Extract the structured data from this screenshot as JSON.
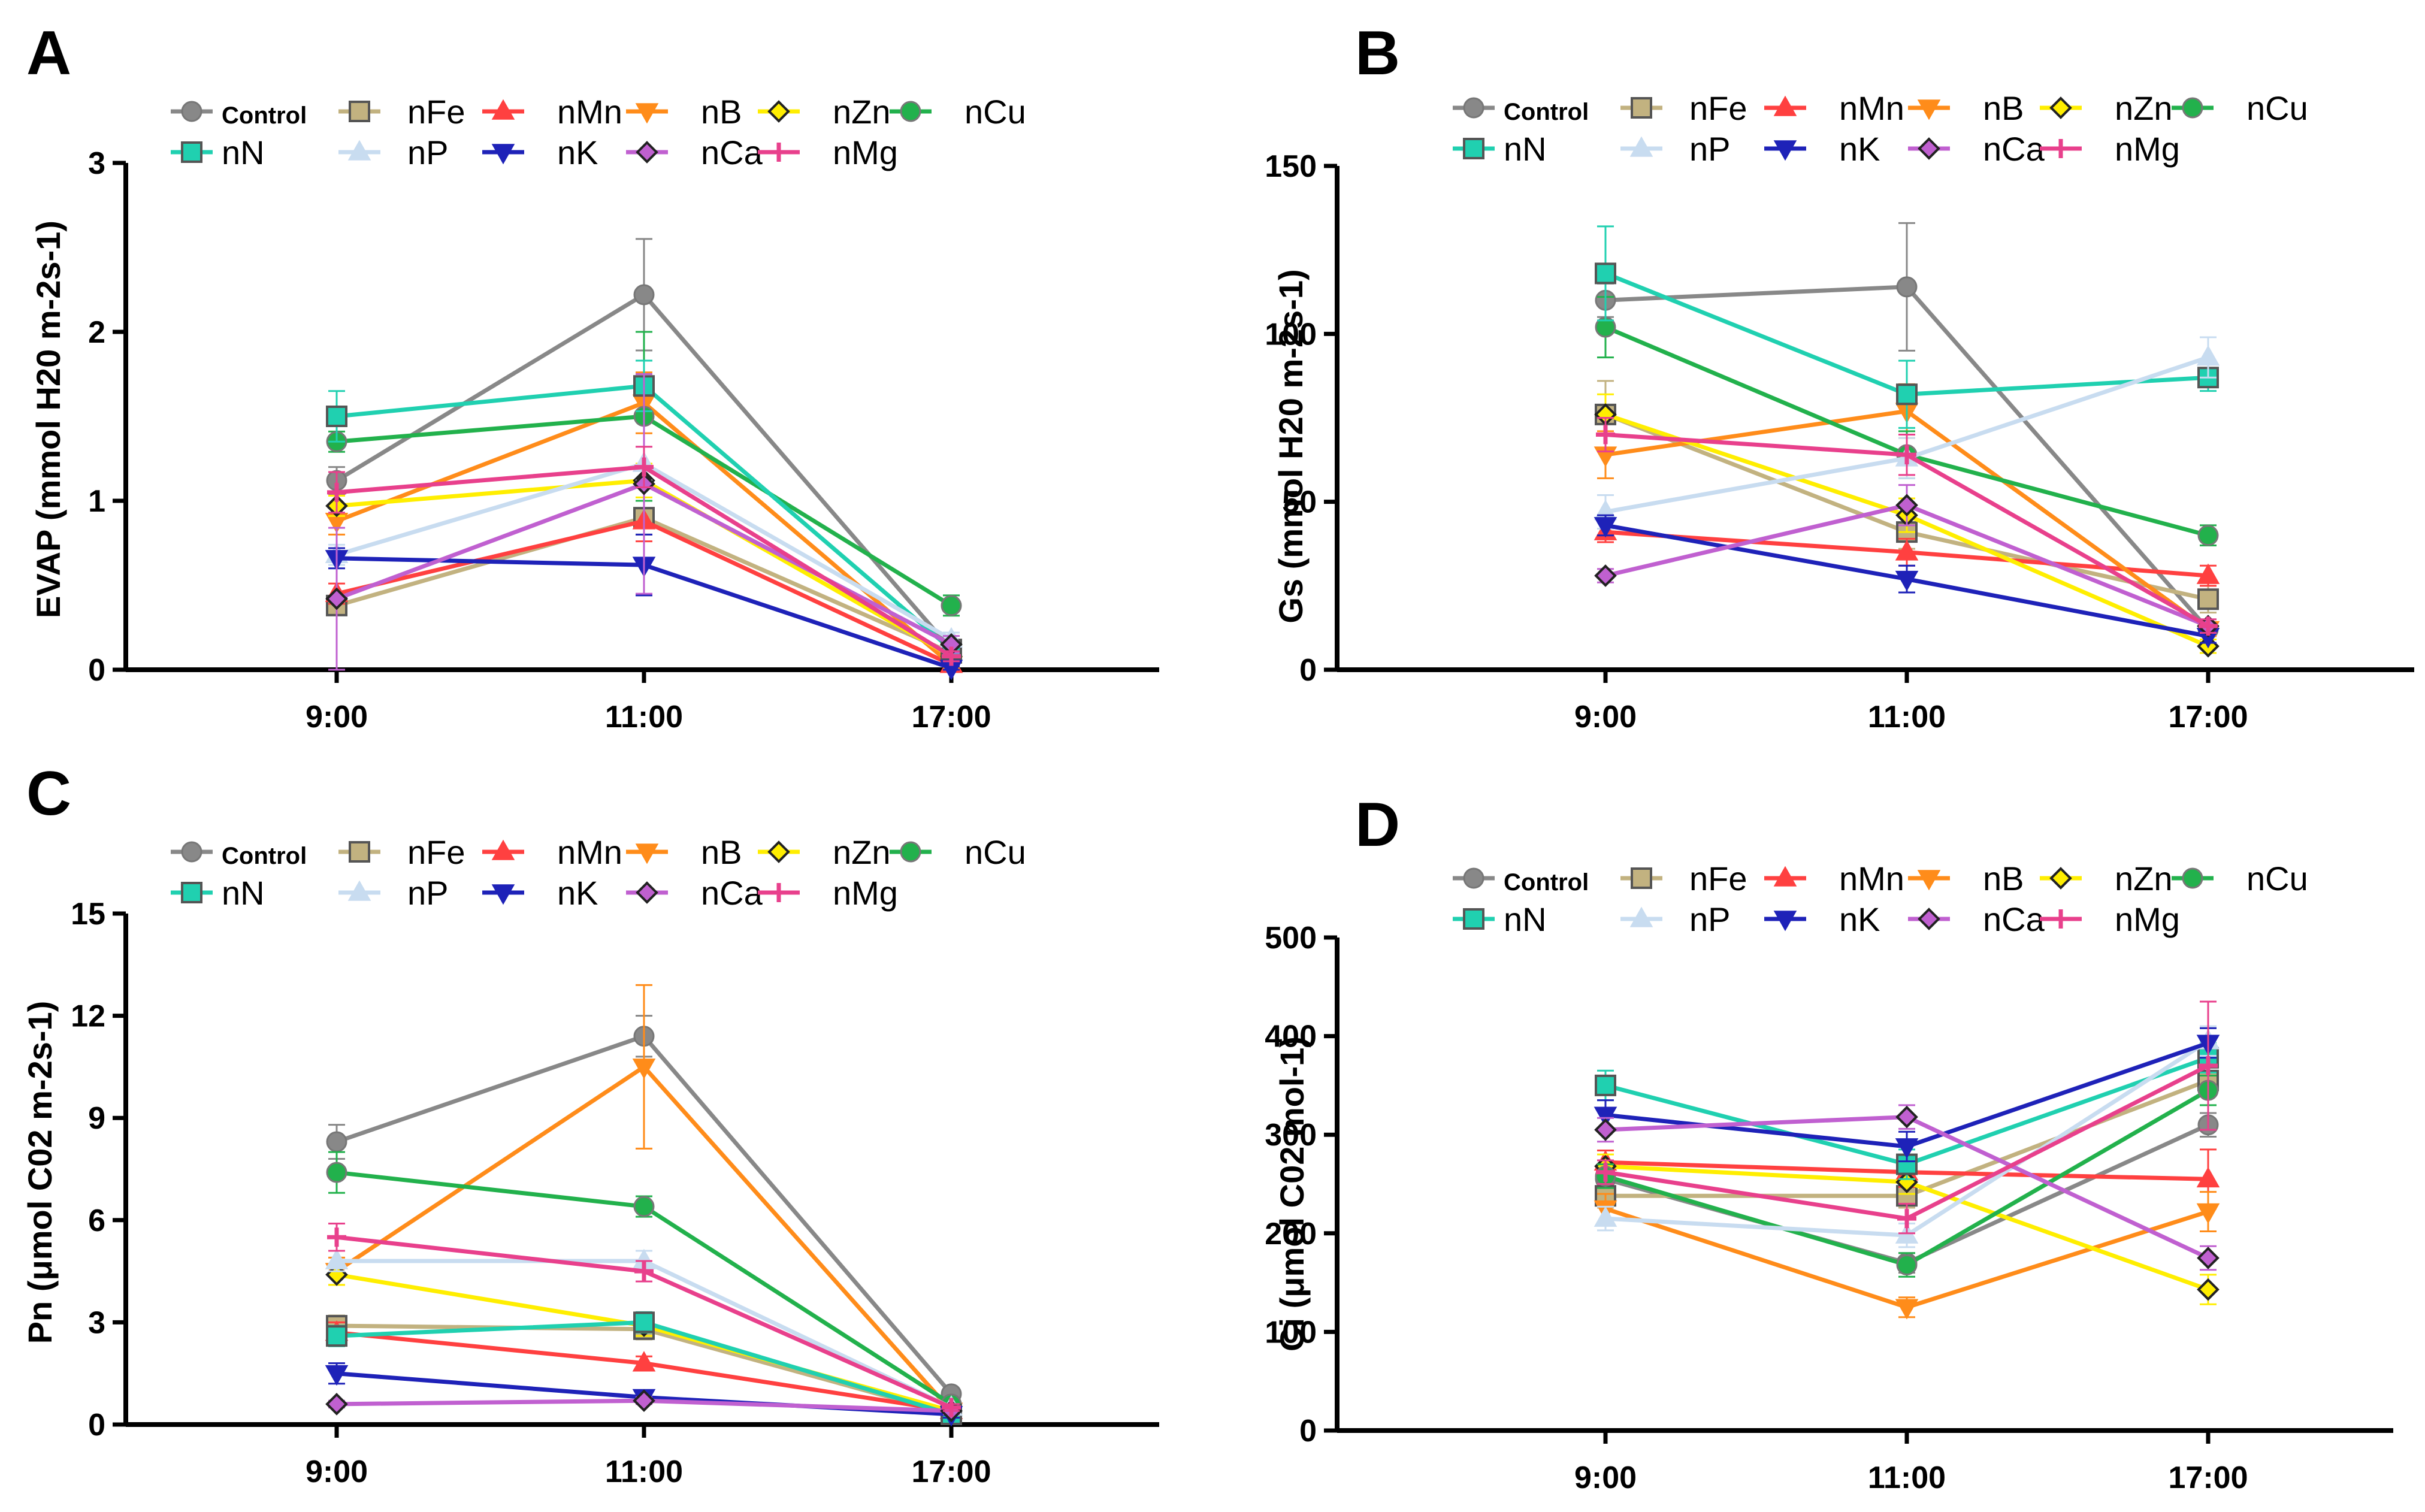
{
  "figure": {
    "legend": [
      {
        "name": "Control",
        "color": "#888888",
        "marker": "circle"
      },
      {
        "name": "nFe",
        "color": "#C2B280",
        "marker": "square"
      },
      {
        "name": "nMn",
        "color": "#FF4040",
        "marker": "triangle"
      },
      {
        "name": "nB",
        "color": "#FF8C1A",
        "marker": "triangle-down"
      },
      {
        "name": "nZn",
        "color": "#FFEE00",
        "marker": "diamond"
      },
      {
        "name": "nCu",
        "color": "#22B14C",
        "marker": "circle"
      },
      {
        "name": "nN",
        "color": "#20D0B0",
        "marker": "square"
      },
      {
        "name": "nP",
        "color": "#C8DCF0",
        "marker": "triangle"
      },
      {
        "name": "nK",
        "color": "#1E22B8",
        "marker": "triangle-down"
      },
      {
        "name": "nCa",
        "color": "#C060D0",
        "marker": "diamond"
      },
      {
        "name": "nMg",
        "color": "#E8408C",
        "marker": "plus"
      }
    ]
  },
  "chart_data": [
    {
      "panel": "A",
      "type": "line",
      "ylabel": "EVAP (mmol H20 m-2s-1)",
      "ylim": [
        0,
        3
      ],
      "yticks": [
        "0",
        "1",
        "2",
        "3"
      ],
      "categories": [
        "9:00",
        "11:00",
        "17:00"
      ],
      "series": [
        {
          "name": "Control",
          "values": [
            1.12,
            2.22,
            0.12
          ],
          "errors": [
            0.08,
            0.33,
            0.05
          ]
        },
        {
          "name": "nFe",
          "values": [
            0.38,
            0.9,
            0.1
          ],
          "errors": [
            0.05,
            0.1,
            0.03
          ]
        },
        {
          "name": "nMn",
          "values": [
            0.45,
            0.88,
            0.03
          ],
          "errors": [
            0.06,
            0.12,
            0.02
          ]
        },
        {
          "name": "nB",
          "values": [
            0.88,
            1.58,
            0.03
          ],
          "errors": [
            0.08,
            0.18,
            0.02
          ]
        },
        {
          "name": "nZn",
          "values": [
            0.97,
            1.12,
            0.08
          ],
          "errors": [
            0.06,
            0.1,
            0.03
          ]
        },
        {
          "name": "nCu",
          "values": [
            1.35,
            1.5,
            0.38
          ],
          "errors": [
            0.06,
            0.5,
            0.06
          ]
        },
        {
          "name": "nN",
          "values": [
            1.5,
            1.68,
            0.12
          ],
          "errors": [
            0.15,
            0.15,
            0.04
          ]
        },
        {
          "name": "nP",
          "values": [
            0.68,
            1.22,
            0.18
          ],
          "errors": [
            0.06,
            0.1,
            0.04
          ]
        },
        {
          "name": "nK",
          "values": [
            0.66,
            0.62,
            0.01
          ],
          "errors": [
            0.06,
            0.18,
            0.01
          ]
        },
        {
          "name": "nCa",
          "values": [
            0.42,
            1.1,
            0.15
          ],
          "errors": [
            0.42,
            0.65,
            0.05
          ]
        },
        {
          "name": "nMg",
          "values": [
            1.05,
            1.2,
            0.08
          ],
          "errors": [
            0.12,
            0.12,
            0.03
          ]
        }
      ]
    },
    {
      "panel": "B",
      "type": "line",
      "ylabel": "Gs (mmol H20 m-2s-1)",
      "ylim": [
        0,
        150
      ],
      "yticks": [
        "0",
        "50",
        "100",
        "150"
      ],
      "categories": [
        "9:00",
        "11:00",
        "17:00"
      ],
      "series": [
        {
          "name": "Control",
          "values": [
            110,
            114,
            12
          ],
          "errors": [
            5,
            19,
            2
          ]
        },
        {
          "name": "nFe",
          "values": [
            76,
            41,
            21
          ],
          "errors": [
            10,
            5,
            4
          ]
        },
        {
          "name": "nMn",
          "values": [
            41,
            35,
            28
          ],
          "errors": [
            3,
            4,
            3
          ]
        },
        {
          "name": "nB",
          "values": [
            64,
            77,
            12
          ],
          "errors": [
            7,
            8,
            2
          ]
        },
        {
          "name": "nZn",
          "values": [
            76,
            46,
            7
          ],
          "errors": [
            6,
            5,
            2
          ]
        },
        {
          "name": "nCu",
          "values": [
            102,
            64,
            40
          ],
          "errors": [
            9,
            7,
            3
          ]
        },
        {
          "name": "nN",
          "values": [
            118,
            82,
            87
          ],
          "errors": [
            14,
            10,
            4
          ]
        },
        {
          "name": "nP",
          "values": [
            47,
            63,
            93
          ],
          "errors": [
            5,
            6,
            6
          ]
        },
        {
          "name": "nK",
          "values": [
            43,
            27,
            10
          ],
          "errors": [
            3,
            4,
            2
          ]
        },
        {
          "name": "nCa",
          "values": [
            28,
            49,
            13
          ],
          "errors": [
            2,
            6,
            2
          ]
        },
        {
          "name": "nMg",
          "values": [
            70,
            64,
            13
          ],
          "errors": [
            5,
            6,
            2
          ]
        }
      ]
    },
    {
      "panel": "C",
      "type": "line",
      "ylabel": "Pn (μmol C02 m-2s-1)",
      "ylim": [
        0,
        15
      ],
      "yticks": [
        "0",
        "3",
        "6",
        "9",
        "12",
        "15"
      ],
      "categories": [
        "9:00",
        "11:00",
        "17:00"
      ],
      "series": [
        {
          "name": "Control",
          "values": [
            8.3,
            11.4,
            0.9
          ],
          "errors": [
            0.5,
            0.6,
            0.1
          ]
        },
        {
          "name": "nFe",
          "values": [
            2.9,
            2.8,
            0.3
          ],
          "errors": [
            0.3,
            0.3,
            0.1
          ]
        },
        {
          "name": "nMn",
          "values": [
            2.7,
            1.8,
            0.4
          ],
          "errors": [
            0.3,
            0.2,
            0.1
          ]
        },
        {
          "name": "nB",
          "values": [
            4.5,
            10.5,
            0.4
          ],
          "errors": [
            0.4,
            2.4,
            0.1
          ]
        },
        {
          "name": "nZn",
          "values": [
            4.4,
            2.9,
            0.4
          ],
          "errors": [
            0.3,
            0.3,
            0.1
          ]
        },
        {
          "name": "nCu",
          "values": [
            7.4,
            6.4,
            0.6
          ],
          "errors": [
            0.6,
            0.3,
            0.1
          ]
        },
        {
          "name": "nN",
          "values": [
            2.6,
            3.0,
            0.3
          ],
          "errors": [
            0.3,
            0.3,
            0.1
          ]
        },
        {
          "name": "nP",
          "values": [
            4.8,
            4.8,
            0.5
          ],
          "errors": [
            0.3,
            0.3,
            0.1
          ]
        },
        {
          "name": "nK",
          "values": [
            1.5,
            0.8,
            0.3
          ],
          "errors": [
            0.3,
            0.1,
            0.1
          ]
        },
        {
          "name": "nCa",
          "values": [
            0.6,
            0.7,
            0.4
          ],
          "errors": [
            0.1,
            0.1,
            0.1
          ]
        },
        {
          "name": "nMg",
          "values": [
            5.5,
            4.5,
            0.5
          ],
          "errors": [
            0.4,
            0.3,
            0.1
          ]
        }
      ]
    },
    {
      "panel": "D",
      "type": "line",
      "ylabel": "Ci (μmol C02 mol-1)",
      "ylim": [
        0,
        500
      ],
      "yticks": [
        "0",
        "100",
        "200",
        "300",
        "400",
        "500"
      ],
      "categories": [
        "9:00",
        "11:00",
        "17:00"
      ],
      "series": [
        {
          "name": "Control",
          "values": [
            255,
            170,
            310
          ],
          "errors": [
            15,
            10,
            12
          ]
        },
        {
          "name": "nFe",
          "values": [
            238,
            238,
            355
          ],
          "errors": [
            12,
            12,
            15
          ]
        },
        {
          "name": "nMn",
          "values": [
            272,
            262,
            255
          ],
          "errors": [
            12,
            15,
            30
          ]
        },
        {
          "name": "nB",
          "values": [
            225,
            125,
            222
          ],
          "errors": [
            15,
            10,
            20
          ]
        },
        {
          "name": "nZn",
          "values": [
            268,
            252,
            143
          ],
          "errors": [
            12,
            12,
            15
          ]
        },
        {
          "name": "nCu",
          "values": [
            258,
            168,
            345
          ],
          "errors": [
            12,
            12,
            15
          ]
        },
        {
          "name": "nN",
          "values": [
            350,
            270,
            378
          ],
          "errors": [
            15,
            15,
            15
          ]
        },
        {
          "name": "nP",
          "values": [
            215,
            198,
            395
          ],
          "errors": [
            12,
            12,
            15
          ]
        },
        {
          "name": "nK",
          "values": [
            320,
            288,
            393
          ],
          "errors": [
            15,
            15,
            15
          ]
        },
        {
          "name": "nCa",
          "values": [
            305,
            318,
            175
          ],
          "errors": [
            12,
            12,
            12
          ]
        },
        {
          "name": "nMg",
          "values": [
            262,
            215,
            370
          ],
          "errors": [
            12,
            15,
            65
          ]
        }
      ]
    }
  ]
}
